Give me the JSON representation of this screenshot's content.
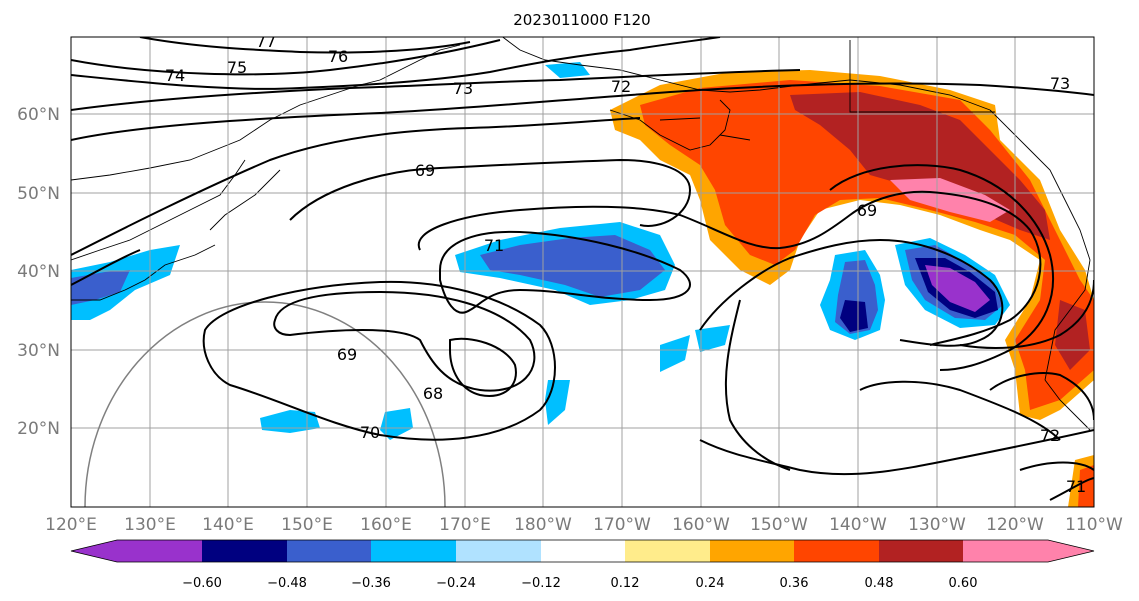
{
  "title": "2023011000 F120",
  "map": {
    "lon_range": [
      "120°E",
      "110°W"
    ],
    "lat_range": [
      10,
      70
    ],
    "lat_ticks": [
      "60°N",
      "50°N",
      "40°N",
      "30°N",
      "20°N"
    ],
    "lon_ticks": [
      "120°E",
      "130°E",
      "140°E",
      "150°E",
      "160°E",
      "170°E",
      "180°W",
      "170°W",
      "160°W",
      "150°W",
      "140°W",
      "130°W",
      "120°W",
      "110°W"
    ],
    "grid": true,
    "contour_labels": [
      "77",
      "76",
      "75",
      "74",
      "73",
      "72",
      "73",
      "69",
      "71",
      "69",
      "69",
      "68",
      "70",
      "72",
      "71"
    ]
  },
  "colorbar": {
    "ticks": [
      "−0.60",
      "−0.48",
      "−0.36",
      "−0.24",
      "−0.12",
      "0.12",
      "0.24",
      "0.36",
      "0.48",
      "0.60"
    ],
    "colors": [
      "#9932cc",
      "#000080",
      "#3a5fcd",
      "#00bfff",
      "#b0e2ff",
      "#ffffff",
      "#ffec8b",
      "#ffa500",
      "#ff4500",
      "#b22222",
      "#ff82ab"
    ]
  }
}
